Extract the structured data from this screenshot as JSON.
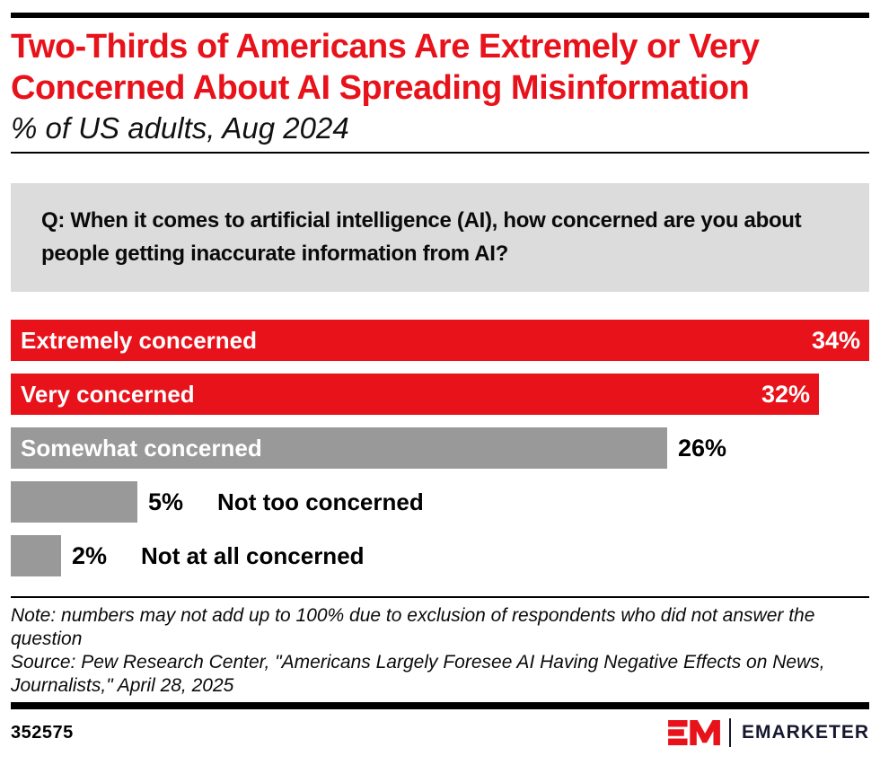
{
  "header": {
    "title": "Two-Thirds of Americans Are Extremely or Very Concerned About AI Spreading Misinformation",
    "subtitle": "% of US adults, Aug 2024"
  },
  "question": "Q: When it comes to artificial intelligence (AI), how concerned are you about people getting inaccurate information from AI?",
  "chart_data": {
    "type": "bar",
    "orientation": "horizontal",
    "unit": "%",
    "title": "Two-Thirds of Americans Are Extremely or Very Concerned About AI Spreading Misinformation",
    "subtitle": "% of US adults, Aug 2024",
    "categories": [
      "Extremely concerned",
      "Very concerned",
      "Somewhat concerned",
      "Not too concerned",
      "Not at all concerned"
    ],
    "values": [
      34,
      32,
      26,
      5,
      2
    ],
    "xlim": [
      0,
      34
    ],
    "grid": false,
    "legend": false,
    "colors": {
      "emphasis": "#e8121b",
      "default": "#999999"
    },
    "series": [
      {
        "label": "Extremely concerned",
        "value": 34,
        "display": "34%",
        "color": "#e8121b",
        "label_inside": true,
        "value_inside": true
      },
      {
        "label": "Very concerned",
        "value": 32,
        "display": "32%",
        "color": "#e8121b",
        "label_inside": true,
        "value_inside": true
      },
      {
        "label": "Somewhat concerned",
        "value": 26,
        "display": "26%",
        "color": "#999999",
        "label_inside": true,
        "value_inside": false
      },
      {
        "label": "Not too concerned",
        "value": 5,
        "display": "5%",
        "color": "#999999",
        "label_inside": false,
        "value_inside": false
      },
      {
        "label": "Not at all concerned",
        "value": 2,
        "display": "2%",
        "color": "#999999",
        "label_inside": false,
        "value_inside": false
      }
    ]
  },
  "notes": {
    "note": "Note: numbers may not add up to 100% due to exclusion of respondents who did not answer the question",
    "source": "Source: Pew Research Center, \"Americans Largely Foresee AI Having Negative Effects on News, Journalists,\" April 28, 2025"
  },
  "footer": {
    "chart_id": "352575",
    "brand": "EMARKETER"
  }
}
